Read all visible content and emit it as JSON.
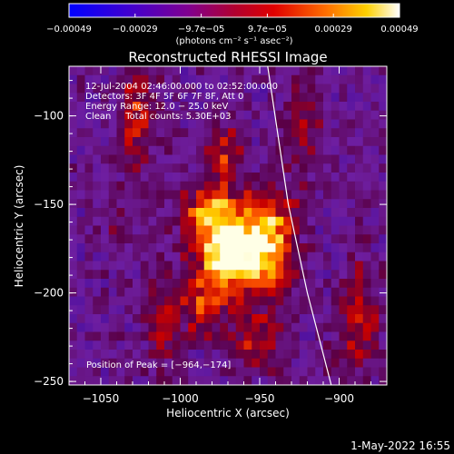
{
  "colorbar": {
    "ticks": [
      "−0.00049",
      "−0.00029",
      "−9.7e−05",
      "9.7e−05",
      "0.00029",
      "0.00049"
    ],
    "unit_label": "(photons cm⁻² s⁻¹ asec⁻²)"
  },
  "footer": {
    "timestamp": "1-May-2022 16:55"
  },
  "chart_data": {
    "type": "heatmap",
    "title": "Reconstructed RHESSI Image",
    "xlabel": "Heliocentric X (arcsec)",
    "ylabel": "Heliocentric Y (arcsec)",
    "xlim": [
      -1070,
      -870
    ],
    "ylim": [
      -252,
      -72
    ],
    "x_ticks": [
      {
        "value": -1050,
        "label": "−1050"
      },
      {
        "value": -1000,
        "label": "−1000"
      },
      {
        "value": -950,
        "label": "−950"
      },
      {
        "value": -900,
        "label": "−900"
      }
    ],
    "y_ticks": [
      {
        "value": -100,
        "label": "−100"
      },
      {
        "value": -150,
        "label": "−150"
      },
      {
        "value": -200,
        "label": "−200"
      },
      {
        "value": -250,
        "label": "−250"
      }
    ],
    "colorscale_range": [
      -0.00049,
      0.00049
    ],
    "annotations": [
      "12-Jul-2004 02:46:00.000 to 02:52:00.000",
      "Detectors: 3F 4F 5F 6F 7F 8F, Att 0",
      "Energy Range: 12.0 − 25.0 keV",
      "Clean     Total counts: 5.30E+03"
    ],
    "peak_label": "Position of Peak = [−964,−174]",
    "peak": [
      -964,
      -174
    ],
    "limb_curve": [
      [
        -945,
        -72
      ],
      [
        -932,
        -150
      ],
      [
        -920,
        -200
      ],
      [
        -905,
        -252
      ]
    ]
  }
}
